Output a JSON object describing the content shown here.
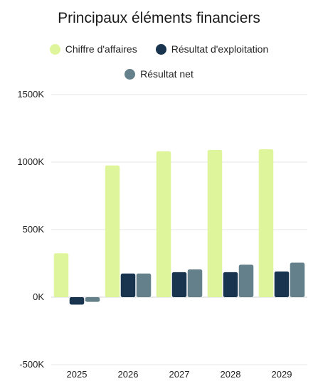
{
  "chart_data": {
    "type": "bar",
    "title": "Principaux éléments financiers",
    "categories": [
      "2025",
      "2026",
      "2027",
      "2028",
      "2029"
    ],
    "series": [
      {
        "name": "Chiffre d'affaires",
        "color": "#dff59b",
        "values": [
          325,
          975,
          1080,
          1090,
          1095
        ]
      },
      {
        "name": "Résultat d'exploitation",
        "color": "#18344f",
        "values": [
          -55,
          175,
          185,
          185,
          190
        ]
      },
      {
        "name": "Résultat net",
        "color": "#64808a",
        "values": [
          -35,
          175,
          205,
          240,
          255
        ]
      }
    ],
    "ylim": [
      -500,
      1500
    ],
    "yticks": [
      -500,
      0,
      500,
      1000,
      1500
    ],
    "ytick_labels": [
      "-500K",
      "0K",
      "500K",
      "1000K",
      "1500K"
    ],
    "grid": true,
    "legend_position": "top"
  }
}
